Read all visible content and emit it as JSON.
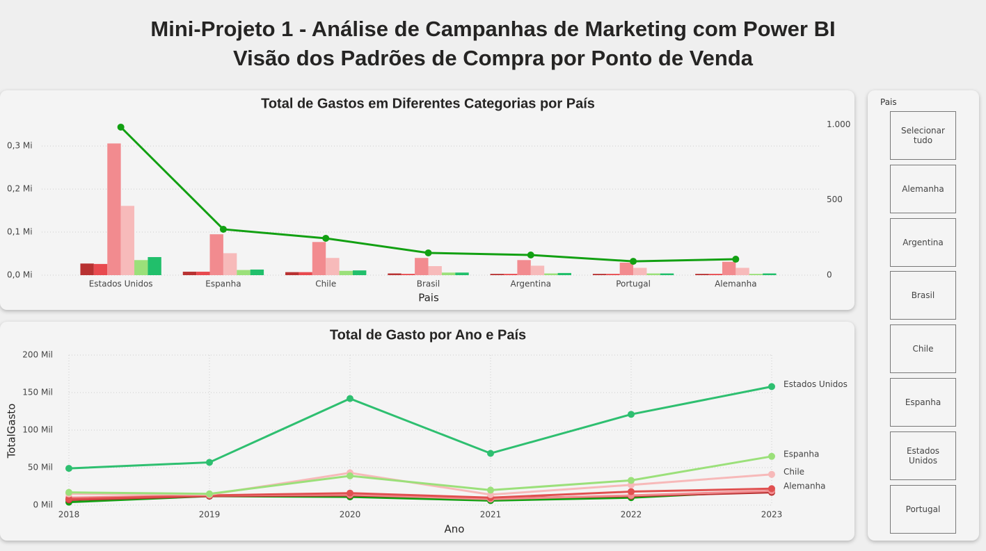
{
  "header": {
    "title": "Mini-Projeto 1 - Análise de Campanhas de Marketing com Power BI",
    "subtitle": "Visão dos Padrões de Compra por Ponto de Venda"
  },
  "chart_data": [
    {
      "type": "bar",
      "title": "Total de Gastos em Diferentes Categorias por País",
      "x_label": "Pais",
      "categories": [
        "Estados Unidos",
        "Espanha",
        "Chile",
        "Brasil",
        "Argentina",
        "Portugal",
        "Alemanha"
      ],
      "series": [
        {
          "color": "#b83232",
          "values": [
            0.027,
            0.008,
            0.007,
            0.004,
            0.003,
            0.003,
            0.003
          ]
        },
        {
          "color": "#e84a4f",
          "values": [
            0.026,
            0.008,
            0.007,
            0.003,
            0.003,
            0.003,
            0.003
          ]
        },
        {
          "color": "#f28b8f",
          "values": [
            0.306,
            0.095,
            0.077,
            0.04,
            0.035,
            0.029,
            0.031
          ]
        },
        {
          "color": "#f7baba",
          "values": [
            0.161,
            0.051,
            0.04,
            0.021,
            0.022,
            0.017,
            0.017
          ]
        },
        {
          "color": "#9be07a",
          "values": [
            0.035,
            0.012,
            0.01,
            0.006,
            0.004,
            0.004,
            0.003
          ]
        },
        {
          "color": "#21bf6b",
          "values": [
            0.042,
            0.013,
            0.011,
            0.006,
            0.005,
            0.004,
            0.004
          ]
        },
        {
          "color": "#12a012",
          "axis": "y2",
          "values": [
            984,
            305,
            245,
            148,
            134,
            92,
            106
          ]
        }
      ],
      "ylim": [
        0,
        0.36
      ],
      "yticks": [
        {
          "value": 0,
          "label": "0,0 Mi"
        },
        {
          "value": 0.1,
          "label": "0,1 Mi"
        },
        {
          "value": 0.2,
          "label": "0,2 Mi"
        },
        {
          "value": 0.3,
          "label": "0,3 Mi"
        }
      ],
      "y2lim": [
        0,
        1030
      ],
      "y2ticks": [
        0,
        500,
        {
          "value": 1000,
          "label": "1.000"
        }
      ],
      "grid": true
    },
    {
      "type": "line",
      "title": "Total de Gasto por Ano e País",
      "x_label": "Ano",
      "y_label": "TotalGasto",
      "x": [
        2018,
        2019,
        2020,
        2021,
        2022,
        2023
      ],
      "xlim": [
        2018,
        2023
      ],
      "xticks": [
        2018,
        2019,
        2020,
        2021,
        2022,
        2023
      ],
      "ylim": [
        0,
        200
      ],
      "yticks": [
        {
          "value": 0,
          "label": "0 Mil"
        },
        {
          "value": 50,
          "label": "50 Mil"
        },
        {
          "value": 100,
          "label": "100 Mil"
        },
        {
          "value": 150,
          "label": "150 Mil"
        },
        {
          "value": 200,
          "label": "200 Mil"
        }
      ],
      "grid": true,
      "series": [
        {
          "name": "Estados Unidos",
          "color": "#2ebf70",
          "values": [
            49,
            57,
            142,
            69,
            121,
            158
          ]
        },
        {
          "name": "Espanha",
          "color": "#9be07a",
          "values": [
            17,
            15,
            39,
            20,
            33,
            65
          ]
        },
        {
          "name": "Chile",
          "color": "#f7b9b9",
          "values": [
            15,
            14,
            43,
            14,
            27,
            41
          ]
        },
        {
          "name": "Alemanha",
          "color": "#e05050",
          "values": [
            8,
            13,
            16,
            10,
            18,
            22
          ]
        },
        {
          "color": "#f28b8f",
          "values": [
            10,
            13,
            14,
            8,
            13,
            19
          ]
        },
        {
          "color": "#b83232",
          "values": [
            7,
            12,
            13,
            9,
            12,
            17
          ]
        },
        {
          "color": "#12a012",
          "values": [
            4,
            12,
            11,
            6,
            10,
            19
          ]
        }
      ]
    }
  ],
  "slicer": {
    "title": "Pais",
    "items": [
      "Selecionar tudo",
      "Alemanha",
      "Argentina",
      "Brasil",
      "Chile",
      "Espanha",
      "Estados Unidos",
      "Portugal"
    ]
  }
}
